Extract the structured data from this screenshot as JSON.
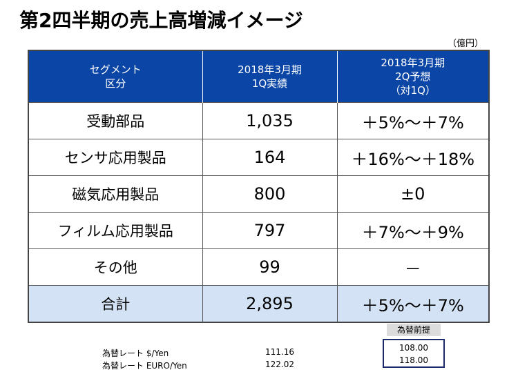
{
  "title": "第2四半期の売上高増減イメージ",
  "unit": "（億円）",
  "table": {
    "headers": [
      [
        "セグメント",
        "区分"
      ],
      [
        "2018年3月期",
        "1Q実績"
      ],
      [
        "2018年3月期",
        "2Q予想",
        "（対1Q）"
      ]
    ],
    "rows": [
      {
        "segment": "受動部品",
        "actual": "1,035",
        "forecast": "＋5%～＋7%"
      },
      {
        "segment": "センサ応用製品",
        "actual": "164",
        "forecast": "＋16%～＋18%"
      },
      {
        "segment": "磁気応用製品",
        "actual": "800",
        "forecast": "±0"
      },
      {
        "segment": "フィルム応用製品",
        "actual": "797",
        "forecast": "＋7%～＋9%"
      },
      {
        "segment": "その他",
        "actual": "99",
        "forecast": "－"
      }
    ],
    "total": {
      "segment": "合計",
      "actual": "2,895",
      "forecast": "＋5%～＋7%"
    }
  },
  "fx": {
    "rows": [
      {
        "label": "為替レート $/Yen",
        "value": "111.16"
      },
      {
        "label": "為替レート EURO/Yen",
        "value": "122.02"
      }
    ],
    "assumption_title": "為替前提",
    "assumption_values": [
      "108.00",
      "118.00"
    ]
  },
  "colors": {
    "header_bg": "#0b46a6",
    "total_bg": "#d3e3f5",
    "assumption_border": "#1b2a6b"
  }
}
